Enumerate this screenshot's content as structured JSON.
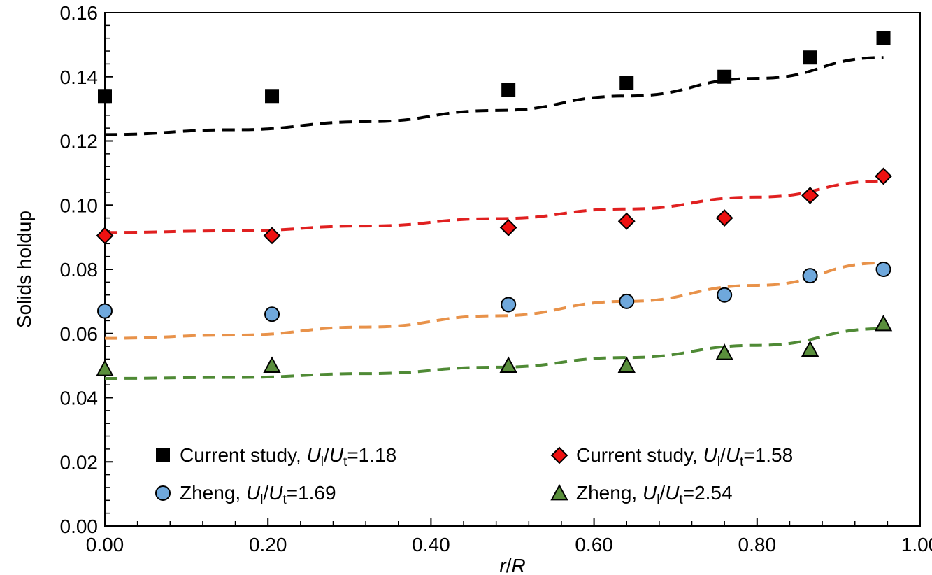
{
  "chart_data": {
    "type": "scatter",
    "xlabel": {
      "main": "r",
      "sep": "/",
      "main2": "R"
    },
    "ylabel": "Solids holdup",
    "xlim": [
      0,
      1.0
    ],
    "ylim": [
      0,
      0.16
    ],
    "x_ticks": [
      "0.00",
      "0.20",
      "0.40",
      "0.60",
      "0.80",
      "1.00"
    ],
    "y_ticks": [
      "0.00",
      "0.02",
      "0.04",
      "0.06",
      "0.08",
      "0.10",
      "0.12",
      "0.14",
      "0.16"
    ],
    "grid": false,
    "legend_position": "bottom",
    "series": [
      {
        "name": "Current study, Ul/Ut=1.18",
        "legend": {
          "prefix": "Current study, ",
          "value": "=1.18"
        },
        "marker": "square",
        "color": "#000000",
        "fit_color": "#000000",
        "x": [
          0.0,
          0.205,
          0.495,
          0.64,
          0.76,
          0.865,
          0.955
        ],
        "y": [
          0.134,
          0.134,
          0.136,
          0.138,
          0.14,
          0.146,
          0.152
        ],
        "fit_x": [
          0.0,
          0.16,
          0.32,
          0.48,
          0.64,
          0.8,
          0.955
        ],
        "fit_y": [
          0.122,
          0.1235,
          0.126,
          0.1295,
          0.134,
          0.1395,
          0.146
        ]
      },
      {
        "name": "Current study, Ul/Ut=1.58",
        "legend": {
          "prefix": "Current study, ",
          "value": "=1.58"
        },
        "marker": "diamond",
        "color": "#ee1111",
        "fit_color": "#e02020",
        "x": [
          0.0,
          0.205,
          0.495,
          0.64,
          0.76,
          0.865,
          0.955
        ],
        "y": [
          0.0905,
          0.0905,
          0.093,
          0.095,
          0.096,
          0.103,
          0.109
        ],
        "fit_x": [
          0.0,
          0.16,
          0.32,
          0.48,
          0.64,
          0.8,
          0.955
        ],
        "fit_y": [
          0.0915,
          0.092,
          0.0935,
          0.0958,
          0.0988,
          0.1025,
          0.1075
        ]
      },
      {
        "name": "Zheng, Ul/Ut=1.69",
        "legend": {
          "prefix": "Zheng, ",
          "value": "=1.69"
        },
        "marker": "circle",
        "color": "#6fa8dc",
        "fit_color": "#e8924a",
        "x": [
          0.0,
          0.205,
          0.495,
          0.64,
          0.76,
          0.865,
          0.955
        ],
        "y": [
          0.067,
          0.066,
          0.069,
          0.07,
          0.072,
          0.078,
          0.08
        ],
        "fit_x": [
          0.0,
          0.16,
          0.32,
          0.48,
          0.64,
          0.8,
          0.955
        ],
        "fit_y": [
          0.0585,
          0.0595,
          0.062,
          0.0655,
          0.07,
          0.075,
          0.082
        ]
      },
      {
        "name": "Zheng, Ul/Ut=2.54",
        "legend": {
          "prefix": "Zheng, ",
          "value": "=2.54"
        },
        "marker": "triangle",
        "color": "#5a8f3c",
        "fit_color": "#4f8a35",
        "x": [
          0.0,
          0.205,
          0.495,
          0.64,
          0.76,
          0.865,
          0.955
        ],
        "y": [
          0.049,
          0.05,
          0.05,
          0.05,
          0.054,
          0.055,
          0.063
        ],
        "fit_x": [
          0.0,
          0.16,
          0.32,
          0.48,
          0.64,
          0.8,
          0.955
        ],
        "fit_y": [
          0.046,
          0.0463,
          0.0475,
          0.0495,
          0.0525,
          0.0563,
          0.0615
        ]
      }
    ]
  }
}
